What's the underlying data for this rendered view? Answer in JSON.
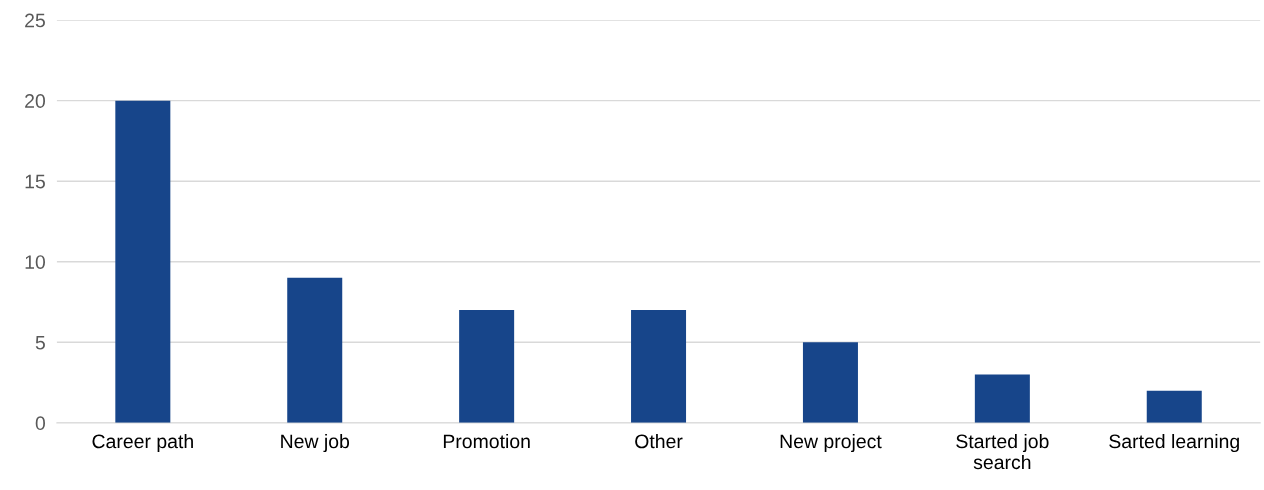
{
  "chart_data": {
    "type": "bar",
    "categories": [
      "Career path",
      "New job",
      "Promotion",
      "Other",
      "New project",
      "Started job search",
      "Sarted learning"
    ],
    "values": [
      20,
      9,
      7,
      7,
      5,
      3,
      2
    ],
    "color": "#17458a",
    "ylim": [
      0,
      25
    ],
    "yticks": [
      0,
      5,
      10,
      15,
      20,
      25
    ],
    "grid": "y",
    "legend": false
  }
}
